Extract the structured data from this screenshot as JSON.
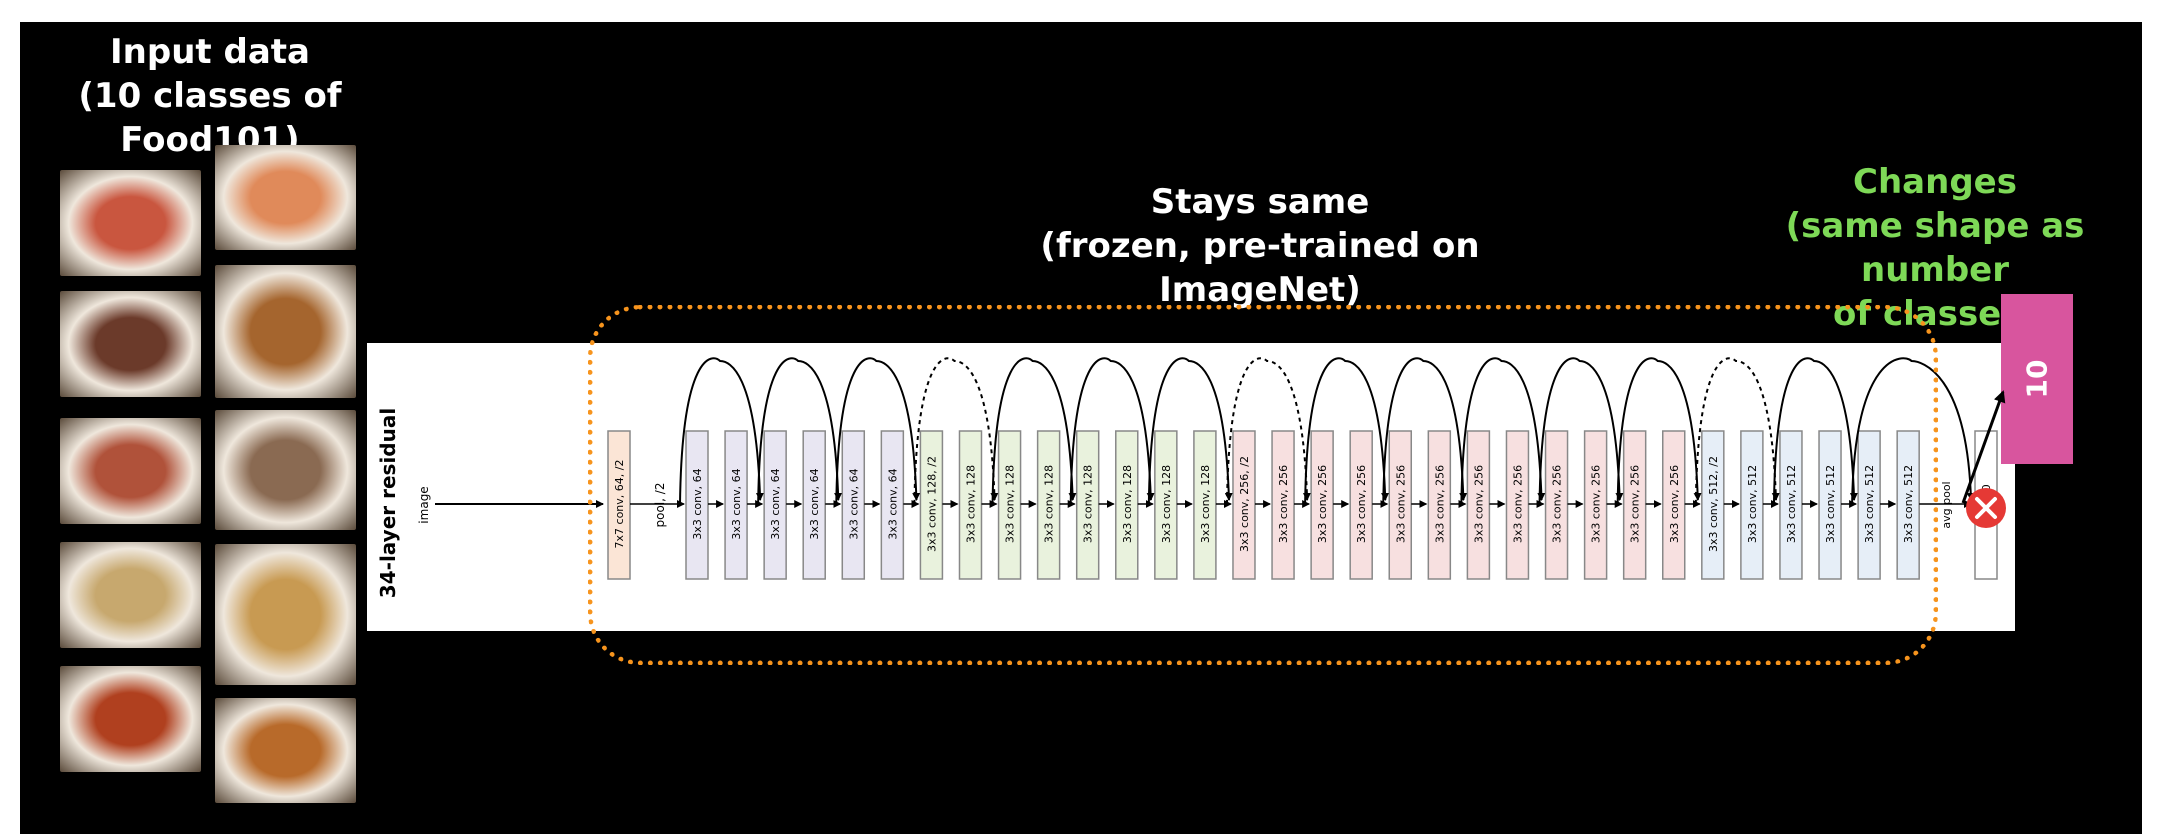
{
  "input_title_line1": "Input data",
  "input_title_line2": "(10 classes of Food101)",
  "frozen_title_line1": "Stays same",
  "frozen_title_line2": "(frozen, pre-trained on ImageNet)",
  "changes_title_line1": "Changes",
  "changes_title_line2": "(same shape as number",
  "changes_title_line3": "of classes)",
  "output_label": "10",
  "network_label": "34-layer residual",
  "image_label": "image",
  "pool_label": "pool, /2",
  "avgpool_label": "avg pool",
  "fc_label": "fc 1000",
  "layers": [
    "7x7 conv, 64, /2",
    "3x3 conv, 64",
    "3x3 conv, 64",
    "3x3 conv, 64",
    "3x3 conv, 64",
    "3x3 conv, 64",
    "3x3 conv, 64",
    "3x3 conv, 128, /2",
    "3x3 conv, 128",
    "3x3 conv, 128",
    "3x3 conv, 128",
    "3x3 conv, 128",
    "3x3 conv, 128",
    "3x3 conv, 128",
    "3x3 conv, 128",
    "3x3 conv, 256, /2",
    "3x3 conv, 256",
    "3x3 conv, 256",
    "3x3 conv, 256",
    "3x3 conv, 256",
    "3x3 conv, 256",
    "3x3 conv, 256",
    "3x3 conv, 256",
    "3x3 conv, 256",
    "3x3 conv, 256",
    "3x3 conv, 256",
    "3x3 conv, 256",
    "3x3 conv, 512, /2",
    "3x3 conv, 512",
    "3x3 conv, 512",
    "3x3 conv, 512",
    "3x3 conv, 512",
    "3x3 conv, 512"
  ],
  "colors": {
    "frame": "#000000",
    "green_text": "#7ed957",
    "dotted_border": "#f7941d",
    "output_box": "#d8559e",
    "remove_icon": "#e53935",
    "layer_fill_first": "#fbe5d6",
    "layer_fill_64": "#e8e6f2",
    "layer_fill_128": "#e9f2dd",
    "layer_fill_256": "#f7e0e0",
    "layer_fill_512": "#e6eef7"
  },
  "photos": [
    {
      "name": "sushi-photo",
      "color": "#c9563f"
    },
    {
      "name": "salmon-photo",
      "color": "#e08a5a"
    },
    {
      "name": "steak-photo",
      "color": "#6b3a2a"
    },
    {
      "name": "hamburger-photo",
      "color": "#a5652e"
    },
    {
      "name": "pizza-photo",
      "color": "#b0523a"
    },
    {
      "name": "ice-cream-photo",
      "color": "#8a6a52"
    },
    {
      "name": "fried-rice-photo",
      "color": "#c7a86e"
    },
    {
      "name": "ramen-photo",
      "color": "#c89a52"
    },
    {
      "name": "chicken-wings-photo",
      "color": "#b0401f"
    },
    {
      "name": "curry-photo",
      "color": "#b86a2a"
    }
  ]
}
